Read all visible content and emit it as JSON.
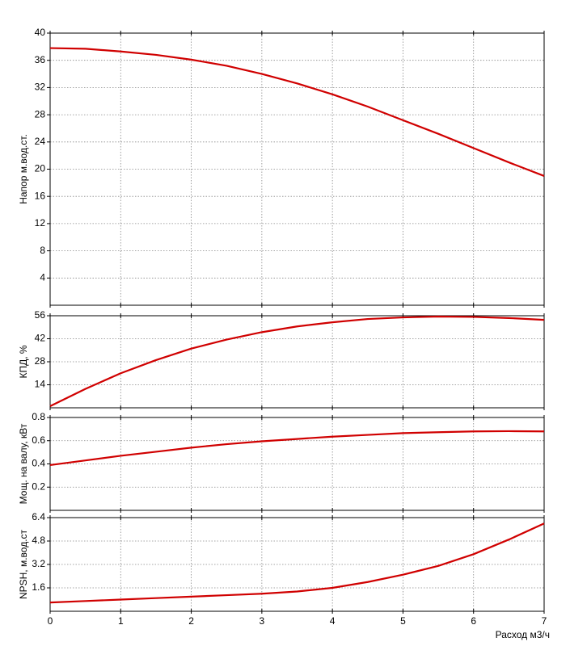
{
  "chart_data": [
    {
      "type": "line",
      "ylabel": "Напор м.вод.ст.",
      "color": "#d00000",
      "x": [
        0,
        0.5,
        1,
        1.5,
        2,
        2.5,
        3,
        3.5,
        4,
        4.5,
        5,
        5.5,
        6,
        6.5,
        7
      ],
      "values": [
        37.8,
        37.7,
        37.3,
        36.8,
        36.1,
        35.2,
        34.0,
        32.6,
        31.0,
        29.2,
        27.2,
        25.2,
        23.1,
        21.0,
        19.0
      ],
      "xlim": [
        0,
        7
      ],
      "ylim": [
        0,
        40
      ],
      "xticks": [
        0,
        1,
        2,
        3,
        4,
        5,
        6,
        7
      ],
      "yticks": [
        4,
        8,
        12,
        16,
        20,
        24,
        28,
        32,
        36,
        40
      ],
      "grid": true
    },
    {
      "type": "line",
      "ylabel": "КПД, %",
      "color": "#d00000",
      "x": [
        0,
        0.5,
        1,
        1.5,
        2,
        2.5,
        3,
        3.5,
        4,
        4.5,
        5,
        5.5,
        6,
        6.5,
        7
      ],
      "values": [
        1,
        11.5,
        21,
        29,
        36,
        41.5,
        46,
        49.5,
        52,
        54,
        55,
        55.5,
        55.3,
        54.6,
        53.5
      ],
      "xlim": [
        0,
        7
      ],
      "ylim": [
        0,
        56
      ],
      "xticks": [
        0,
        1,
        2,
        3,
        4,
        5,
        6,
        7
      ],
      "yticks": [
        14,
        28,
        42,
        56
      ],
      "grid": true
    },
    {
      "type": "line",
      "ylabel": "Мощ. на валу, кВт",
      "color": "#d00000",
      "x": [
        0,
        0.5,
        1,
        1.5,
        2,
        2.5,
        3,
        3.5,
        4,
        4.5,
        5,
        5.5,
        6,
        6.5,
        7
      ],
      "values": [
        0.39,
        0.43,
        0.47,
        0.505,
        0.54,
        0.57,
        0.595,
        0.615,
        0.635,
        0.65,
        0.665,
        0.673,
        0.68,
        0.682,
        0.68
      ],
      "xlim": [
        0,
        7
      ],
      "ylim": [
        0,
        0.8
      ],
      "xticks": [
        0,
        1,
        2,
        3,
        4,
        5,
        6,
        7
      ],
      "yticks": [
        0.2,
        0.4,
        0.6,
        0.8
      ],
      "grid": true
    },
    {
      "type": "line",
      "ylabel": "NPSH, м.вод.ст",
      "xlabel": "Расход м3/ч",
      "color": "#d00000",
      "x": [
        0,
        0.5,
        1,
        1.5,
        2,
        2.5,
        3,
        3.5,
        4,
        4.5,
        5,
        5.5,
        6,
        6.5,
        7
      ],
      "values": [
        0.6,
        0.7,
        0.8,
        0.9,
        1.0,
        1.1,
        1.2,
        1.35,
        1.6,
        2.0,
        2.5,
        3.1,
        3.9,
        4.9,
        6.0
      ],
      "xlim": [
        0,
        7
      ],
      "ylim": [
        0,
        6.4
      ],
      "xticks": [
        0,
        1,
        2,
        3,
        4,
        5,
        6,
        7
      ],
      "yticks": [
        1.6,
        3.2,
        4.8,
        6.4
      ],
      "grid": true
    }
  ]
}
